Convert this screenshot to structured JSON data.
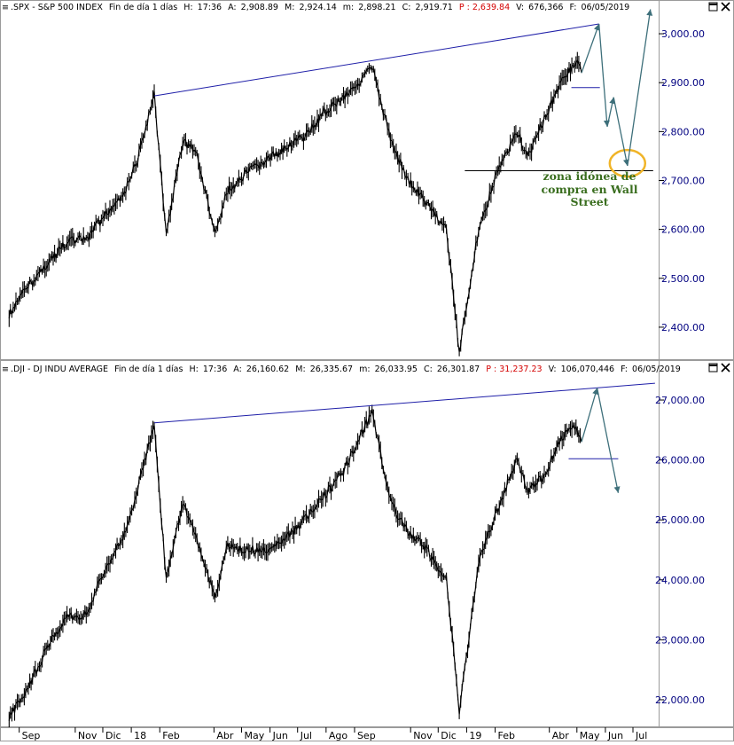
{
  "colors": {
    "price": "#000000",
    "trendline": "#1f1fa8",
    "projection": "#3d6f7a",
    "support": "#1f1fa8",
    "highlight_circle": "#f0b428",
    "annotation_text": "#3a6e1f",
    "axis_text": "#000080",
    "close_value": "#d40000"
  },
  "icons": {
    "pane_close": "close-icon",
    "pane_maximize": "maximize-icon"
  },
  "panes": [
    {
      "id": "spx",
      "icon_label": "≡",
      "symbol": ".SPX - S&P 500 INDEX",
      "period": "Fin de día 1 días",
      "h_label": "H:",
      "h_value": "17:36",
      "a_label": "A:",
      "a_value": "2,908.89",
      "m_label": "M:",
      "m_value": "2,924.14",
      "min_label": "m:",
      "min_value": "2,898.21",
      "c_label": "C:",
      "c_value": "2,919.71",
      "p_label": "P",
      "p_value": ": 2,639.84",
      "v_label": "V:",
      "v_value": "676,366",
      "f_label": "F:",
      "f_value": "06/05/2019",
      "yticks": [
        "2,400.00",
        "2,500.00",
        "2,600.00",
        "2,700.00",
        "2,800.00",
        "2,900.00",
        "3,000.00"
      ],
      "annotation": [
        "zona idónea de",
        "compra en Wall",
        "Street"
      ]
    },
    {
      "id": "dji",
      "icon_label": "≡",
      "symbol": ".DJI - DJ INDU AVERAGE",
      "period": "Fin de día 1 días",
      "h_label": "H:",
      "h_value": "17:36",
      "a_label": "A:",
      "a_value": "26,160.62",
      "m_label": "M:",
      "m_value": "26,335.67",
      "min_label": "m:",
      "min_value": "26,033.95",
      "c_label": "C:",
      "c_value": "26,301.87",
      "p_label": "P",
      "p_value": ": 31,237.23",
      "v_label": "V:",
      "v_value": "106,070,446",
      "f_label": "F:",
      "f_value": "06/05/2019",
      "yticks": [
        "22,000.00",
        "23,000.00",
        "24,000.00",
        "25,000.00",
        "26,000.00",
        "27,000.00"
      ]
    }
  ],
  "xticks": [
    "Sep",
    "Nov",
    "Dic",
    "18",
    "Feb",
    "Abr",
    "May",
    "Jun",
    "Jul",
    "Ago",
    "Sep",
    "Nov",
    "Dic",
    "19",
    "Feb",
    "Abr",
    "May",
    "Jun",
    "Jul"
  ],
  "chart_data": [
    {
      "type": "line",
      "series": [
        {
          "x": [
            "2017-08-21",
            "2017-09-11",
            "2017-10-02",
            "2017-10-23",
            "2017-11-13",
            "2017-12-04",
            "2017-12-26",
            "2018-01-08",
            "2018-01-26",
            "2018-02-08",
            "2018-02-26",
            "2018-03-12",
            "2018-04-02",
            "2018-04-16",
            "2018-05-07",
            "2018-05-28",
            "2018-06-18",
            "2018-07-09",
            "2018-07-30",
            "2018-08-20",
            "2018-09-20",
            "2018-10-10",
            "2018-10-29",
            "2018-11-19",
            "2018-12-10",
            "2018-12-24",
            "2019-01-14",
            "2019-02-04",
            "2019-02-25",
            "2019-03-08",
            "2019-03-25",
            "2019-04-15",
            "2019-04-30",
            "2019-05-06"
          ],
          "values": [
            2425,
            2485,
            2530,
            2575,
            2580,
            2630,
            2680,
            2745,
            2873,
            2590,
            2780,
            2760,
            2590,
            2680,
            2715,
            2740,
            2770,
            2790,
            2840,
            2870,
            2930,
            2785,
            2700,
            2650,
            2600,
            2350,
            2600,
            2720,
            2800,
            2745,
            2820,
            2905,
            2945,
            2920
          ]
        }
      ],
      "trendline": {
        "x": [
          "2018-01-26",
          "2019-05-25"
        ],
        "values": [
          2873,
          3020
        ]
      },
      "projection": {
        "x": [
          "2019-05-06",
          "2019-05-25",
          "2019-06-03",
          "2019-06-10",
          "2019-06-25",
          "2019-07-20"
        ],
        "values": [
          2920,
          3020,
          2810,
          2870,
          2730,
          3050
        ]
      },
      "support_lines": [
        {
          "x": [
            "2019-04-25",
            "2019-05-26"
          ],
          "values": [
            2890,
            2890
          ]
        },
        {
          "x": [
            "2018-12-30",
            "2019-07-23"
          ],
          "values": [
            2720,
            2720
          ]
        }
      ],
      "highlight": {
        "x": "2019-06-25",
        "value": 2735
      },
      "ylim": [
        2340,
        3040
      ],
      "xlim": [
        "2017-08-14",
        "2019-07-28"
      ]
    },
    {
      "type": "line",
      "series": [
        {
          "x": [
            "2017-08-21",
            "2017-09-11",
            "2017-10-02",
            "2017-10-23",
            "2017-11-13",
            "2017-12-04",
            "2017-12-26",
            "2018-01-08",
            "2018-01-26",
            "2018-02-08",
            "2018-02-26",
            "2018-03-12",
            "2018-04-02",
            "2018-04-16",
            "2018-05-07",
            "2018-05-28",
            "2018-06-18",
            "2018-07-09",
            "2018-07-30",
            "2018-08-20",
            "2018-09-20",
            "2018-10-10",
            "2018-10-29",
            "2018-11-19",
            "2018-12-10",
            "2018-12-24",
            "2019-01-14",
            "2019-02-04",
            "2019-02-25",
            "2019-03-08",
            "2019-03-25",
            "2019-04-15",
            "2019-04-30",
            "2019-05-06"
          ],
          "values": [
            21700,
            22200,
            22900,
            23400,
            23400,
            24200,
            24800,
            25500,
            26620,
            24000,
            25300,
            24700,
            23700,
            24600,
            24500,
            24500,
            24700,
            25000,
            25400,
            25800,
            26800,
            25300,
            24800,
            24500,
            24000,
            21800,
            24300,
            25200,
            26000,
            25500,
            25700,
            26400,
            26600,
            26300
          ]
        }
      ],
      "trendline": {
        "x": [
          "2018-01-26",
          "2019-07-25"
        ],
        "values": [
          26620,
          27280
        ]
      },
      "projection": {
        "x": [
          "2019-05-06",
          "2019-05-23",
          "2019-06-15"
        ],
        "values": [
          26300,
          27200,
          25450
        ]
      },
      "support_lines": [
        {
          "x": [
            "2019-04-22",
            "2019-06-15"
          ],
          "values": [
            26020,
            26020
          ]
        }
      ],
      "ylim": [
        21600,
        27400
      ],
      "xlim": [
        "2017-08-14",
        "2019-07-28"
      ]
    }
  ]
}
